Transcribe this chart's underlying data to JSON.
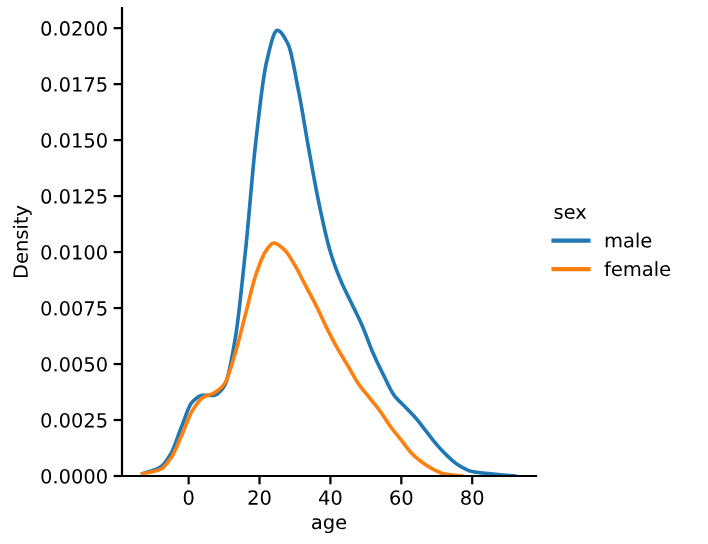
{
  "chart_data": {
    "type": "line",
    "xlabel": "age",
    "ylabel": "Density",
    "legend_title": "sex",
    "legend": "right",
    "xlim": [
      -18.8,
      98
    ],
    "xticks": [
      0,
      20,
      40,
      60,
      80
    ],
    "ylim": [
      0,
      0.0209
    ],
    "yticks": [
      {
        "value": 0,
        "label": "0.0000"
      },
      {
        "value": 0.0025,
        "label": "0.0025"
      },
      {
        "value": 0.005,
        "label": "0.0050"
      },
      {
        "value": 0.0075,
        "label": "0.0075"
      },
      {
        "value": 0.01,
        "label": "0.0100"
      },
      {
        "value": 0.0125,
        "label": "0.0125"
      },
      {
        "value": 0.015,
        "label": "0.0150"
      },
      {
        "value": 0.0175,
        "label": "0.0175"
      },
      {
        "value": 0.02,
        "label": "0.0200"
      }
    ],
    "grid": false,
    "marker": "none",
    "line_style": "solid",
    "series": [
      {
        "name": "male",
        "color": "#1f77b4",
        "x": [
          -13,
          -8,
          -5,
          -2,
          1,
          4,
          7,
          10,
          13,
          16,
          19,
          22,
          25,
          28,
          31,
          34,
          37,
          40,
          43,
          46,
          49,
          52,
          55,
          58,
          61,
          64,
          67,
          70,
          73,
          76,
          80,
          85,
          92
        ],
        "values": [
          0.0001,
          0.0004,
          0.001,
          0.0022,
          0.0033,
          0.0036,
          0.0036,
          0.004,
          0.006,
          0.01,
          0.015,
          0.0185,
          0.0199,
          0.0193,
          0.0172,
          0.0145,
          0.012,
          0.01,
          0.0087,
          0.0077,
          0.0067,
          0.0055,
          0.0045,
          0.0036,
          0.0031,
          0.0026,
          0.002,
          0.0014,
          0.0009,
          0.0005,
          0.0002,
          0.0001,
          0.0
        ]
      },
      {
        "name": "female",
        "color": "#ff7f0e",
        "x": [
          -13,
          -8,
          -5,
          -2,
          1,
          4,
          7,
          10,
          13,
          16,
          19,
          22,
          24,
          27,
          30,
          33,
          36,
          39,
          42,
          45,
          48,
          51,
          54,
          57,
          60,
          63,
          66,
          69,
          72,
          77
        ],
        "values": [
          0.0001,
          0.0003,
          0.0008,
          0.0018,
          0.0029,
          0.0035,
          0.0037,
          0.0041,
          0.0054,
          0.0072,
          0.009,
          0.0101,
          0.0104,
          0.0101,
          0.0094,
          0.0085,
          0.0076,
          0.0066,
          0.0057,
          0.0049,
          0.0041,
          0.0035,
          0.0029,
          0.0022,
          0.0016,
          0.001,
          0.0006,
          0.0003,
          0.0001,
          0.0
        ]
      }
    ]
  }
}
